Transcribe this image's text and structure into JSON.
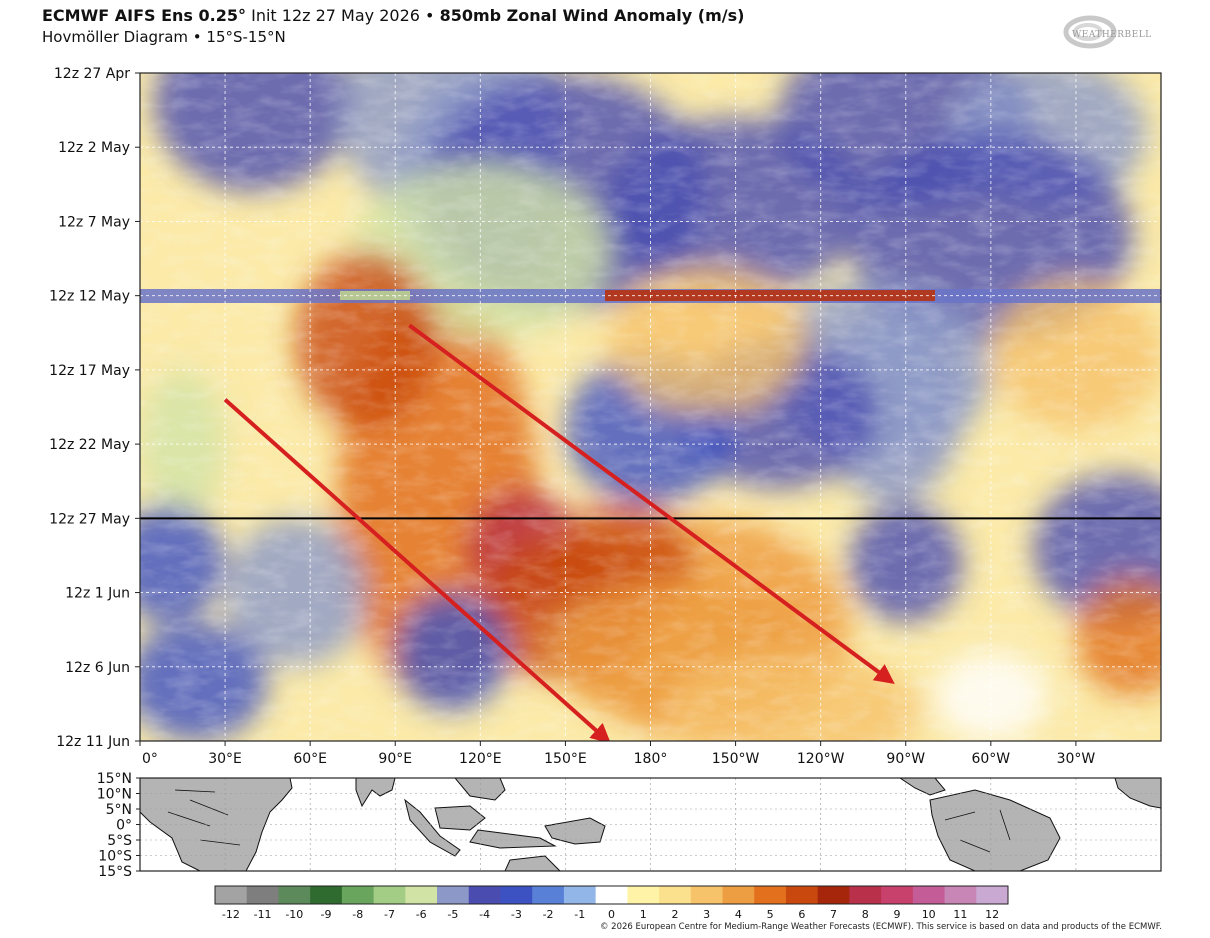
{
  "header": {
    "model": "ECMWF AIFS Ens 0.25°",
    "init": "Init 12z 27 May 2026",
    "bullet": "•",
    "variable": "850mb Zonal Wind Anomaly (m/s)",
    "subtitle": "Hovmöller Diagram • 15°S-15°N"
  },
  "logo": {
    "text": "WEATHERBELL",
    "icon": "weatherbell-swirl-icon"
  },
  "copyright": "© 2026 European Centre for Medium-Range Weather Forecasts (ECMWF). This service is based on data and products of the ECMWF.",
  "chart_data": {
    "type": "heatmap",
    "title": "850mb Zonal Wind Anomaly (m/s)",
    "x_axis": {
      "ticks": [
        "0°",
        "30°E",
        "60°E",
        "90°E",
        "120°E",
        "150°E",
        "180°",
        "150°W",
        "120°W",
        "90°W",
        "60°W",
        "30°W"
      ],
      "range_deg_east": [
        0,
        360
      ]
    },
    "y_axis": {
      "ticks": [
        "12z 27 Apr",
        "12z 2 May",
        "12z 7 May",
        "12z 12 May",
        "12z 17 May",
        "12z 22 May",
        "12z 27 May",
        "12z 1 Jun",
        "12z 6 Jun",
        "12z 11 Jun"
      ],
      "range": [
        "2026-04-27",
        "2026-06-11"
      ],
      "inverted": true
    },
    "init_line": "12z 27 May",
    "colorbar": {
      "ticks": [
        "-12",
        "-11",
        "-10",
        "-9",
        "-8",
        "-7",
        "-6",
        "-5",
        "-4",
        "-3",
        "-2",
        "-1",
        "0",
        "1",
        "2",
        "3",
        "4",
        "5",
        "6",
        "7",
        "8",
        "9",
        "10",
        "11",
        "12"
      ],
      "range": [
        -12.5,
        12.5
      ],
      "units": "m/s"
    },
    "anomaly_features": [
      {
        "name": "",
        "value": 5,
        "lon_start": 70,
        "lon_end": 140,
        "date_start": "2026-05-12",
        "date_end": "2026-06-08"
      },
      {
        "name": "",
        "value": 4,
        "lon_start": 150,
        "lon_end": 250,
        "date_start": "2026-05-27",
        "date_end": "2026-06-11"
      },
      {
        "name": "",
        "value": -5,
        "lon_start": 90,
        "lon_end": 150,
        "date_start": "2026-04-27",
        "date_end": "2026-05-12"
      },
      {
        "name": "",
        "value": -5,
        "lon_start": 240,
        "lon_end": 290,
        "date_start": "2026-05-13",
        "date_end": "2026-05-26"
      }
    ],
    "annotations": [
      {
        "type": "arrow",
        "color": "#d62020",
        "from": {
          "lon": 30,
          "date": "2026-05-19"
        },
        "to": {
          "lon": 165,
          "date": "2026-06-11"
        }
      },
      {
        "type": "arrow",
        "color": "#d62020",
        "from": {
          "lon": 95,
          "date": "2026-05-14"
        },
        "to": {
          "lon": 265,
          "date": "2026-06-07"
        }
      }
    ],
    "grid": true
  },
  "map": {
    "lat_ticks": [
      "15°N",
      "10°N",
      "5°N",
      "0°",
      "5°S",
      "10°S",
      "15°S"
    ]
  }
}
